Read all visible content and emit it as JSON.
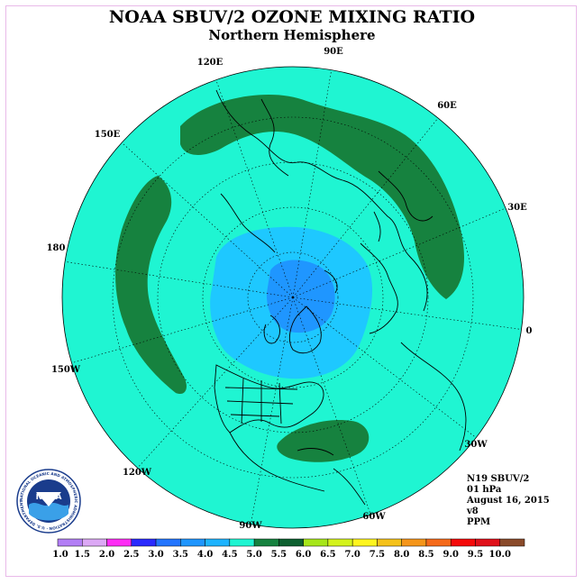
{
  "title": "NOAA SBUV/2 OZONE MIXING RATIO",
  "subtitle": "Northern Hemisphere",
  "longitude_labels": [
    "90E",
    "60E",
    "30E",
    "0",
    "30W",
    "60W",
    "90W",
    "120W",
    "150W",
    "180",
    "150E",
    "120E"
  ],
  "info": {
    "satellite": "N19 SBUV/2",
    "level": "01 hPa",
    "date": "August 16, 2015",
    "version": "v8",
    "units": "PPM"
  },
  "logo": {
    "text": "NOAA",
    "ring_text": "NATIONAL OCEANIC AND ATMOSPHERIC ADMINISTRATION · U.S. DEPARTMENT OF COMMERCE"
  },
  "colors": {
    "background_field": "#1ff5d2",
    "band_5_5": "#16823f",
    "band_4_5": "#1ec8ff",
    "band_4_0": "#1f96ff",
    "coast": "#000000"
  },
  "legend": {
    "ticks": [
      "1.0",
      "1.5",
      "2.0",
      "2.5",
      "3.0",
      "3.5",
      "4.0",
      "4.5",
      "5.0",
      "5.5",
      "6.0",
      "6.5",
      "7.0",
      "7.5",
      "8.0",
      "8.5",
      "9.0",
      "9.5",
      "10.0"
    ],
    "colors": [
      "#b37ff5",
      "#dca9f5",
      "#ff2df5",
      "#2a2aff",
      "#2375ff",
      "#1f96ff",
      "#1eb4ff",
      "#1ff5d2",
      "#16823f",
      "#0e6030",
      "#a7e61a",
      "#d4f31d",
      "#fff51f",
      "#f5c21a",
      "#f5961a",
      "#f56a1a",
      "#f50a0a",
      "#e0101a",
      "#8a4a2a"
    ]
  }
}
